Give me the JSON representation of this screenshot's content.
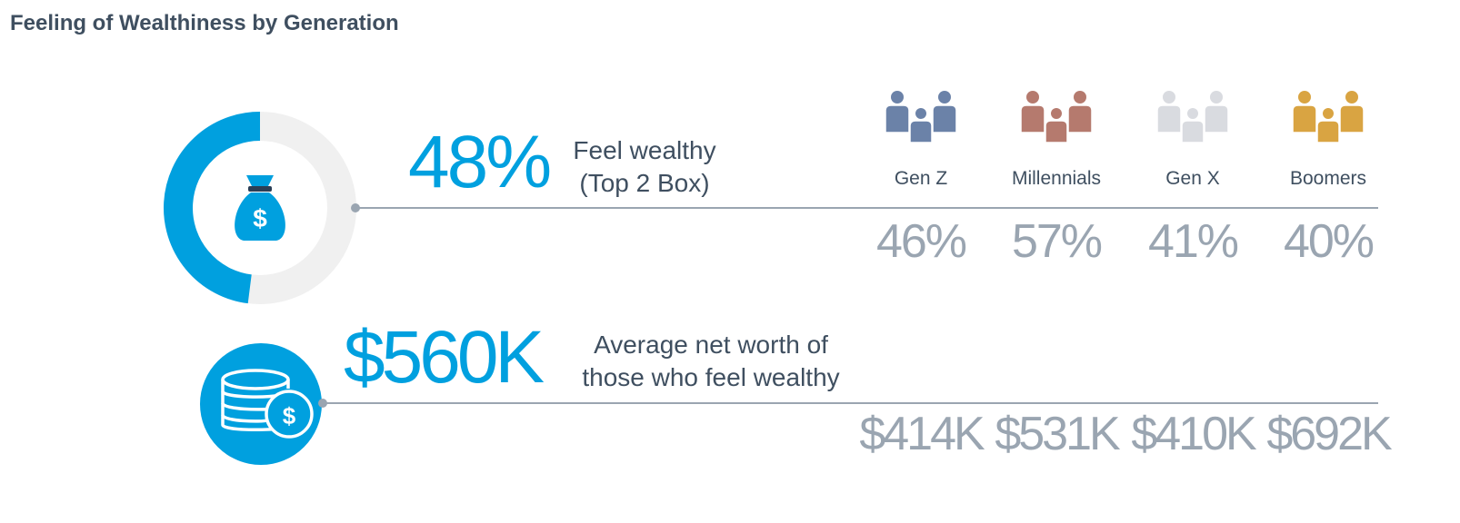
{
  "title": "Feeling of Wealthiness by Generation",
  "headline": {
    "percent_label": "48%",
    "percent_value": 48,
    "percent_desc_line1": "Feel wealthy",
    "percent_desc_line2": "(Top 2 Box)",
    "worth_label": "$560K",
    "worth_desc_line1": "Average net worth of",
    "worth_desc_line2": "those who feel wealthy"
  },
  "colors": {
    "accent": "#00a0df",
    "donut_track": "#f0f0f0",
    "rule": "#9aa5b1",
    "muted_text": "#9aa5b1",
    "gen_z": "#6b82a8",
    "millennials": "#b57a6e",
    "gen_x": "#d9dbe0",
    "boomers": "#d9a442"
  },
  "icons": [
    "money-bag-icon",
    "coin-stack-icon",
    "people-group-icon"
  ],
  "chart_data": {
    "type": "table",
    "title": "Feeling of Wealthiness by Generation",
    "categories": [
      "Gen Z",
      "Millennials",
      "Gen X",
      "Boomers"
    ],
    "series": [
      {
        "name": "Feel wealthy (Top 2 Box)",
        "values": [
          46,
          57,
          41,
          40
        ],
        "labels": [
          "46%",
          "57%",
          "41%",
          "40%"
        ]
      },
      {
        "name": "Average net worth of those who feel wealthy",
        "values": [
          414,
          531,
          410,
          692
        ],
        "labels": [
          "$414K",
          "$531K",
          "$410K",
          "$692K"
        ]
      }
    ],
    "overall": {
      "feel_wealthy_pct": 48,
      "avg_net_worth_k": 560
    }
  }
}
